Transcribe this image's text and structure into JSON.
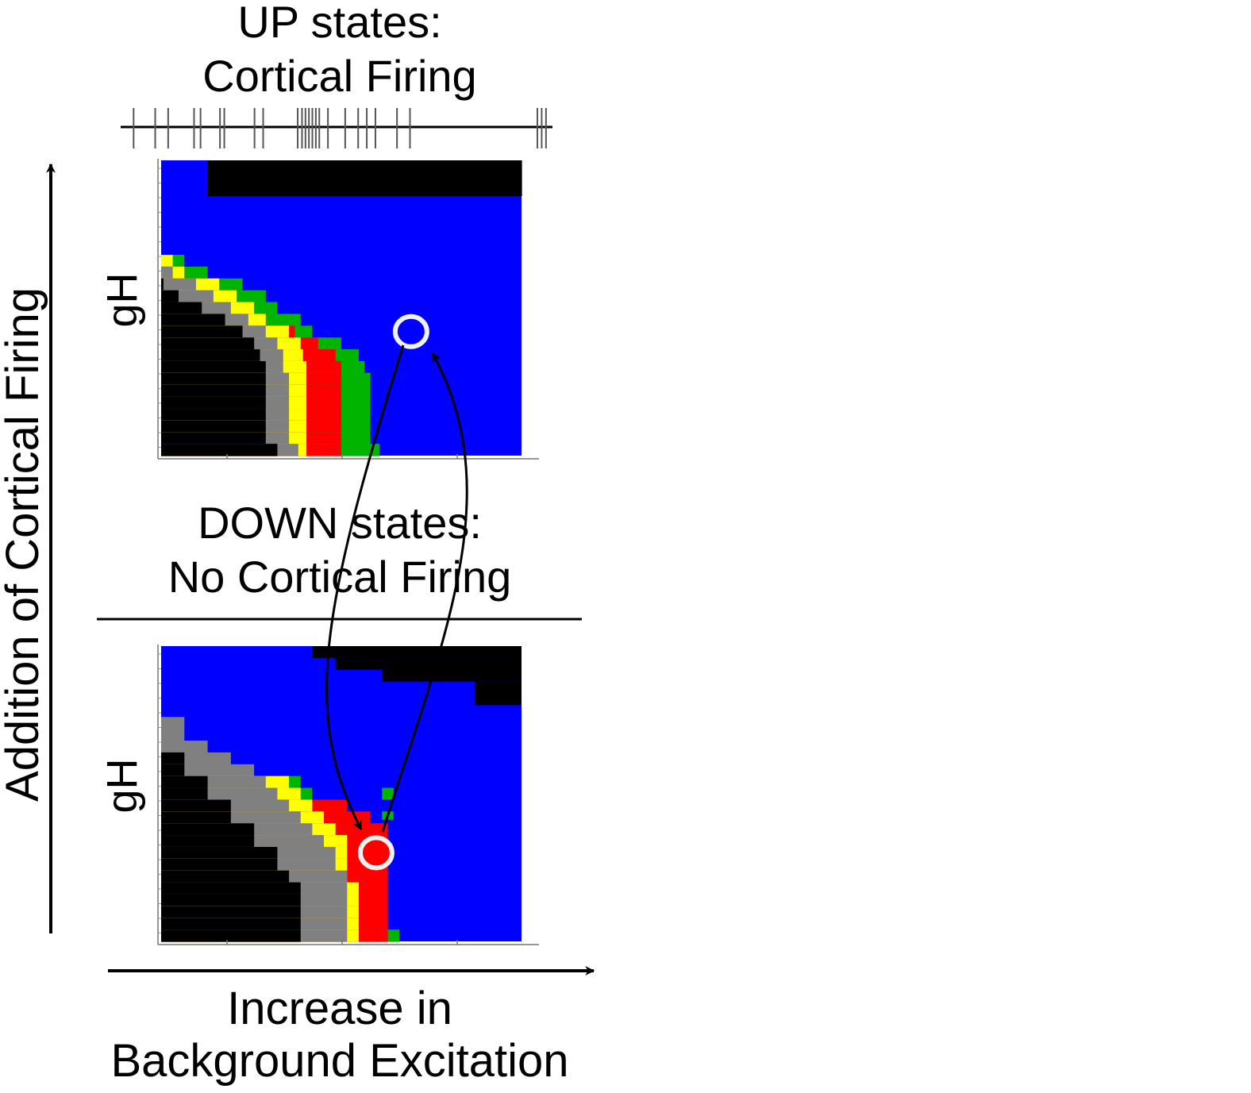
{
  "figure": {
    "up_title_line1": "UP states:",
    "up_title_line2": "Cortical Firing",
    "down_title_line1": "DOWN states:",
    "down_title_line2": "No Cortical Firing",
    "vertical_axis_label": "Addition of Cortical Firing",
    "horizontal_axis_label_line1": "Increase in",
    "horizontal_axis_label_line2": "Background Excitation",
    "top_panel_ylabel": "gH",
    "bottom_panel_ylabel": "gH"
  },
  "colors": {
    "blue": "#0000ff",
    "black": "#000000",
    "green": "#00b400",
    "yellow": "#ffff00",
    "red": "#ff0000",
    "gray": "#808080",
    "marker_ring": "#f0f0f0"
  },
  "spike_raster": {
    "spike_times": [
      3,
      8,
      11,
      17,
      18.5,
      23,
      24,
      31,
      33,
      41,
      42,
      42.8,
      43.6,
      44.4,
      45.2,
      46,
      48,
      52,
      55,
      57,
      59,
      64,
      67,
      96.5,
      97.5,
      98.5
    ]
  },
  "panels": {
    "top": {
      "marker_state": "blue",
      "marker_position": {
        "col": 21.5,
        "row": 14.5
      }
    },
    "bottom": {
      "marker_state": "red",
      "marker_position": {
        "col": 18.5,
        "row": 17.5
      }
    }
  }
}
